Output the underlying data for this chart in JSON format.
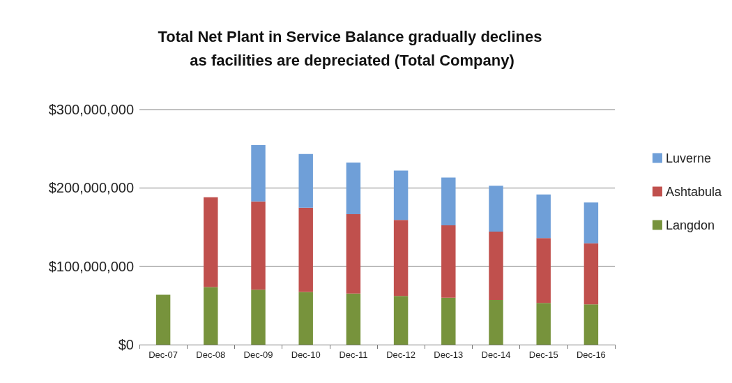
{
  "chart_data": {
    "type": "bar",
    "title": "Total Net Plant in Service Balance gradually declines as facilities are depreciated (Total Company)",
    "categories": [
      "Dec-07",
      "Dec-08",
      "Dec-09",
      "Dec-10",
      "Dec-11",
      "Dec-12",
      "Dec-13",
      "Dec-14",
      "Dec-15",
      "Dec-16"
    ],
    "stacked": true,
    "series": [
      {
        "name": "Langdon",
        "color": "#77933c",
        "values": [
          63700000,
          73500000,
          70200000,
          67300000,
          65200000,
          62200000,
          59900000,
          56900000,
          53300000,
          51300000
        ]
      },
      {
        "name": "Ashtabula",
        "color": "#c0504d",
        "values": [
          null,
          114600000,
          112600000,
          107500000,
          101300000,
          96900000,
          92400000,
          87400000,
          82700000,
          77900000
        ]
      },
      {
        "name": "Luverne",
        "color": "#6f9fd8",
        "values": [
          null,
          null,
          71700000,
          68500000,
          65800000,
          63100000,
          61000000,
          58400000,
          55700000,
          52100000
        ]
      }
    ],
    "ylim": [
      0,
      300000000
    ],
    "yticks": [
      {
        "value": 0,
        "label": "$0"
      },
      {
        "value": 100000000,
        "label": "$100,000,000"
      },
      {
        "value": 200000000,
        "label": "$200,000,000"
      },
      {
        "value": 300000000,
        "label": "$300,000,000"
      }
    ],
    "grid": "y",
    "legend": "right"
  }
}
